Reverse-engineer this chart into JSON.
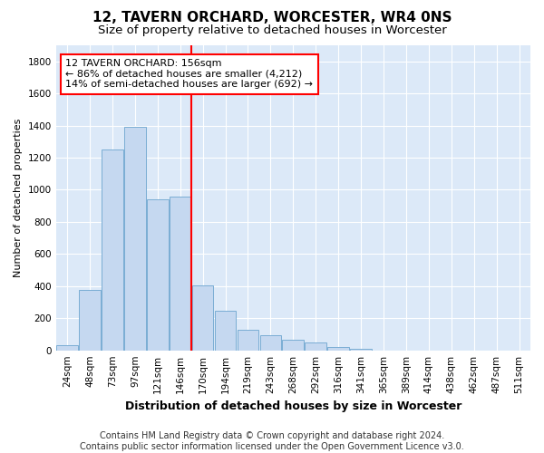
{
  "title": "12, TAVERN ORCHARD, WORCESTER, WR4 0NS",
  "subtitle": "Size of property relative to detached houses in Worcester",
  "xlabel": "Distribution of detached houses by size in Worcester",
  "ylabel": "Number of detached properties",
  "categories": [
    "24sqm",
    "48sqm",
    "73sqm",
    "97sqm",
    "121sqm",
    "146sqm",
    "170sqm",
    "194sqm",
    "219sqm",
    "243sqm",
    "268sqm",
    "292sqm",
    "316sqm",
    "341sqm",
    "365sqm",
    "389sqm",
    "414sqm",
    "438sqm",
    "462sqm",
    "487sqm",
    "511sqm"
  ],
  "values": [
    30,
    375,
    1250,
    1390,
    940,
    960,
    405,
    245,
    130,
    95,
    65,
    50,
    20,
    10,
    0,
    0,
    0,
    0,
    0,
    0,
    0
  ],
  "bar_color": "#c5d8f0",
  "bar_edge_color": "#7aadd4",
  "vline_color": "red",
  "annotation_text": "12 TAVERN ORCHARD: 156sqm\n← 86% of detached houses are smaller (4,212)\n14% of semi-detached houses are larger (692) →",
  "ylim": [
    0,
    1900
  ],
  "yticks": [
    0,
    200,
    400,
    600,
    800,
    1000,
    1200,
    1400,
    1600,
    1800
  ],
  "footnote": "Contains HM Land Registry data © Crown copyright and database right 2024.\nContains public sector information licensed under the Open Government Licence v3.0.",
  "plot_bg_color": "#dce9f8",
  "title_fontsize": 11,
  "subtitle_fontsize": 9.5,
  "xlabel_fontsize": 9,
  "ylabel_fontsize": 8,
  "tick_fontsize": 7.5,
  "annotation_fontsize": 8,
  "footnote_fontsize": 7
}
